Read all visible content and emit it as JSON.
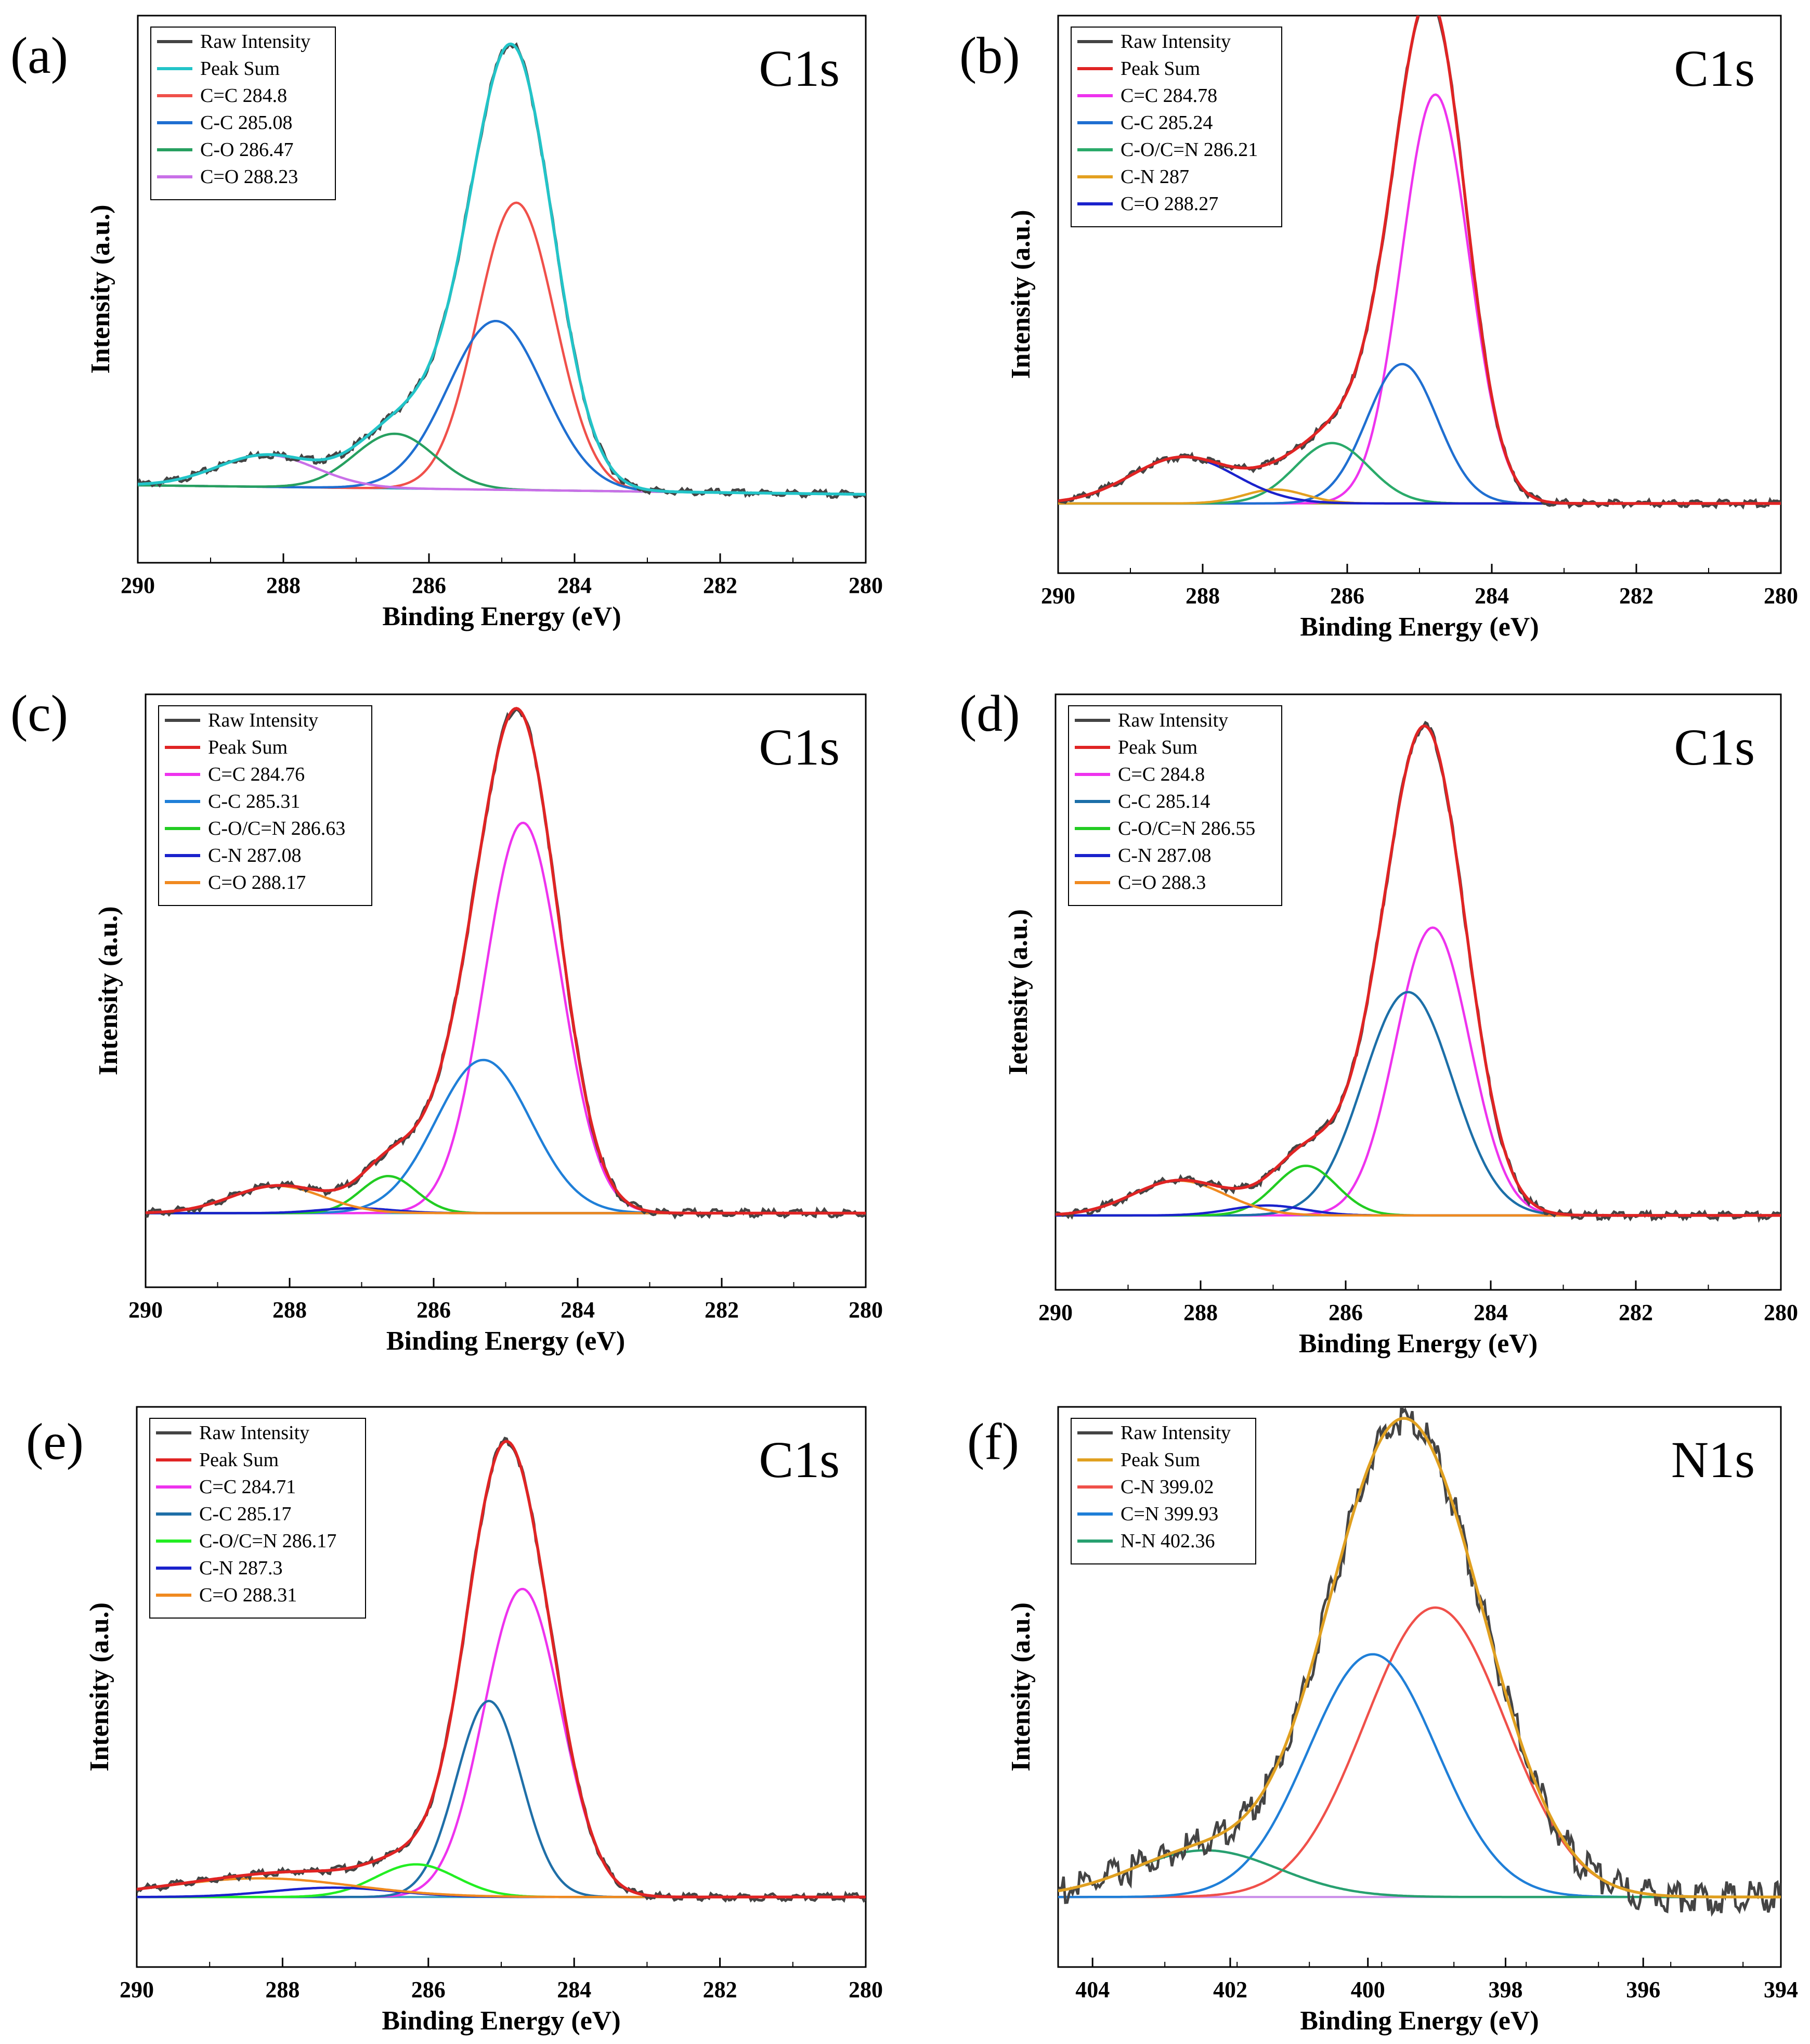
{
  "chart_data": [
    {
      "type": "line",
      "panel_label": "(a)",
      "title": "C1s",
      "xlabel": "Binding Energy (eV)",
      "ylabel": "Intensity (a.u.)",
      "xlim": [
        290,
        280
      ],
      "ylim": [
        -0.15,
        1.05
      ],
      "xticks": [
        "290",
        "288",
        "286",
        "284",
        "282",
        "280"
      ],
      "baseline": [
        0.02,
        0.0
      ],
      "legend": [
        "Raw Intensity",
        "Peak Sum",
        "C=C 284.8",
        "C-C  285.08",
        "C-O  286.47",
        "C=O  288.23"
      ],
      "series": [
        {
          "name": "C=C 284.8",
          "color": "#f0504a",
          "center": 284.8,
          "height": 0.63,
          "fwhm": 1.25
        },
        {
          "name": "C-C  285.08",
          "color": "#1f6fd1",
          "center": 285.08,
          "height": 0.37,
          "fwhm": 1.55
        },
        {
          "name": "C-O  286.47",
          "color": "#27a060",
          "center": 286.47,
          "height": 0.12,
          "fwhm": 1.3
        },
        {
          "name": "C=O  288.23",
          "color": "#c970e8",
          "center": 288.23,
          "height": 0.07,
          "fwhm": 1.6
        }
      ],
      "raw_color": "#444444",
      "sum_color": "#22c4c8"
    },
    {
      "type": "line",
      "panel_label": "(b)",
      "title": "C1s",
      "xlabel": "Binding Energy (eV)",
      "ylabel": "Intensity (a.u.)",
      "xlim": [
        290,
        280
      ],
      "ylim": [
        -0.15,
        1.05
      ],
      "xticks": [
        "290",
        "288",
        "286",
        "284",
        "282",
        "280"
      ],
      "baseline": [
        0.0,
        0.0
      ],
      "legend": [
        "Raw Intensity",
        "Peak Sum",
        "C=C 284.78",
        "C-C 285.24",
        "C-O/C=N 286.21",
        "C-N 287",
        "C=O 288.27"
      ],
      "series": [
        {
          "name": "C=C 284.78",
          "color": "#ee33ee",
          "center": 284.78,
          "height": 0.88,
          "fwhm": 1.1
        },
        {
          "name": "C-C 285.24",
          "color": "#1f6fd1",
          "center": 285.24,
          "height": 0.3,
          "fwhm": 1.15
        },
        {
          "name": "C-O/C=N 286.21",
          "color": "#2aaa6a",
          "center": 286.21,
          "height": 0.13,
          "fwhm": 1.2
        },
        {
          "name": "C-N 287",
          "color": "#e3a020",
          "center": 287.0,
          "height": 0.03,
          "fwhm": 1.0
        },
        {
          "name": "C=O 288.27",
          "color": "#1a22cc",
          "center": 288.27,
          "height": 0.1,
          "fwhm": 1.7
        }
      ],
      "raw_color": "#444444",
      "sum_color": "#e02424"
    },
    {
      "type": "line",
      "panel_label": "(c)",
      "title": "C1s",
      "xlabel": "Binding Energy (eV)",
      "ylabel": "Intensity (a.u.)",
      "xlim": [
        290,
        280
      ],
      "ylim": [
        -0.15,
        1.05
      ],
      "xticks": [
        "290",
        "288",
        "286",
        "284",
        "282",
        "280"
      ],
      "baseline": [
        0.0,
        0.0
      ],
      "legend": [
        "Raw Intensity",
        "Peak Sum",
        "C=C 284.76",
        "C-C 285.31",
        "C-O/C=N 286.63",
        "C-N 287.08",
        "C=O 288.17"
      ],
      "series": [
        {
          "name": "C=C 284.76",
          "color": "#ee33ee",
          "center": 284.76,
          "height": 0.79,
          "fwhm": 1.25
        },
        {
          "name": "C-C 285.31",
          "color": "#1f7fd8",
          "center": 285.31,
          "height": 0.31,
          "fwhm": 1.55
        },
        {
          "name": "C-O/C=N 286.63",
          "color": "#22cc22",
          "center": 286.63,
          "height": 0.075,
          "fwhm": 0.9
        },
        {
          "name": "C-N 287.08",
          "color": "#1a22cc",
          "center": 287.08,
          "height": 0.01,
          "fwhm": 1.2
        },
        {
          "name": "C=O 288.17",
          "color": "#f08a20",
          "center": 288.17,
          "height": 0.055,
          "fwhm": 1.5
        }
      ],
      "raw_color": "#444444",
      "sum_color": "#e02424"
    },
    {
      "type": "line",
      "panel_label": "(d)",
      "title": "C1s",
      "xlabel": "Binding Energy (eV)",
      "ylabel": "Ietensity (a.u.)",
      "xlim": [
        290,
        280
      ],
      "ylim": [
        -0.15,
        1.05
      ],
      "xticks": [
        "290",
        "288",
        "286",
        "284",
        "282",
        "280"
      ],
      "baseline": [
        0.0,
        0.0
      ],
      "legend": [
        "Raw Intensity",
        "Peak Sum",
        "C=C 284.8",
        "C-C 285.14",
        "C-O/C=N 286.55",
        "C-N 287.08",
        "C=O 288.3"
      ],
      "series": [
        {
          "name": "C=C 284.8",
          "color": "#ee33ee",
          "center": 284.8,
          "height": 0.58,
          "fwhm": 1.2
        },
        {
          "name": "C-C 285.14",
          "color": "#1c6fa8",
          "center": 285.14,
          "height": 0.45,
          "fwhm": 1.45
        },
        {
          "name": "C-O/C=N 286.55",
          "color": "#22cc22",
          "center": 286.55,
          "height": 0.1,
          "fwhm": 1.0
        },
        {
          "name": "C-N 287.08",
          "color": "#1a22cc",
          "center": 287.08,
          "height": 0.02,
          "fwhm": 1.2
        },
        {
          "name": "C=O 288.3",
          "color": "#f08a20",
          "center": 288.3,
          "height": 0.07,
          "fwhm": 1.5
        }
      ],
      "raw_color": "#444444",
      "sum_color": "#e02424"
    },
    {
      "type": "line",
      "panel_label": "(e)",
      "title": "C1s",
      "xlabel": "Binding Energy (eV)",
      "ylabel": "Intensity (a.u.)",
      "xlim": [
        290,
        280
      ],
      "ylim": [
        -0.15,
        1.05
      ],
      "xticks": [
        "290",
        "288",
        "286",
        "284",
        "282",
        "280"
      ],
      "baseline": [
        0.0,
        0.0
      ],
      "legend": [
        "Raw Intensity",
        "Peak Sum",
        "C=C 284.71",
        "C-C 285.17",
        "C-O/C=N 286.17",
        "C-N 287.3",
        "C=O 288.31"
      ],
      "series": [
        {
          "name": "C=C 284.71",
          "color": "#ee33ee",
          "center": 284.71,
          "height": 0.66,
          "fwhm": 1.25
        },
        {
          "name": "C-C 285.17",
          "color": "#1f6fa8",
          "center": 285.17,
          "height": 0.42,
          "fwhm": 1.05
        },
        {
          "name": "C-O/C=N 286.17",
          "color": "#22ee22",
          "center": 286.17,
          "height": 0.07,
          "fwhm": 1.3
        },
        {
          "name": "C-N 287.3",
          "color": "#1a22cc",
          "center": 287.3,
          "height": 0.02,
          "fwhm": 2.0
        },
        {
          "name": "C=O 288.31",
          "color": "#f08a20",
          "center": 288.31,
          "height": 0.04,
          "fwhm": 3.0
        }
      ],
      "raw_color": "#444444",
      "sum_color": "#e02424"
    },
    {
      "type": "line",
      "panel_label": "(f)",
      "title": "N1s",
      "xlabel": "Binding Energy (eV)",
      "ylabel": "Intensity (a.u.)",
      "xlim": [
        404.5,
        394
      ],
      "ylim": [
        -0.15,
        1.05
      ],
      "xticks": [
        "404",
        "402",
        "400",
        "398",
        "396",
        "394"
      ],
      "baseline": [
        0.0,
        0.0
      ],
      "legend": [
        "Raw Intensity",
        "Peak Sum",
        "C-N 399.02",
        "C=N 399.93",
        "N-N 402.36"
      ],
      "series": [
        {
          "name": "C-N 399.02",
          "color": "#f0504a",
          "center": 399.02,
          "height": 0.62,
          "fwhm": 2.4
        },
        {
          "name": "C=N 399.93",
          "color": "#1f7fd8",
          "center": 399.93,
          "height": 0.52,
          "fwhm": 2.2
        },
        {
          "name": "N-N 402.36",
          "color": "#27a070",
          "center": 402.36,
          "height": 0.1,
          "fwhm": 2.5
        }
      ],
      "raw_color": "#444444",
      "sum_color": "#e0a020"
    }
  ]
}
